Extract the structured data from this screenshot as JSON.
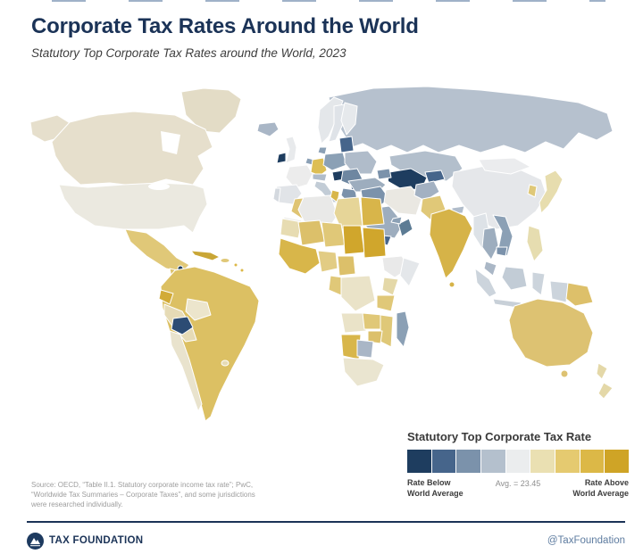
{
  "header": {
    "title": "Corporate Tax Rates Around the World",
    "subtitle": "Statutory Top Corporate Tax Rates around the World, 2023"
  },
  "legend": {
    "title": "Statutory Top Corporate Tax Rate",
    "left_label_line1": "Rate Below",
    "left_label_line2": "World Average",
    "center_label": "Avg. = 23.45",
    "right_label_line1": "Rate Above",
    "right_label_line2": "World Average",
    "swatches": [
      "#1e3d5f",
      "#46658b",
      "#7b92ab",
      "#b4c0cd",
      "#ebedee",
      "#eae0b2",
      "#e5ca70",
      "#dcb847",
      "#cfa426"
    ]
  },
  "source": {
    "line1": "Source:  OECD, “Table II.1. Statutory corporate income tax rate”; PwC,",
    "line2": "“Worldwide Tax Summaries – Corporate Taxes”, and some jurisdictions",
    "line3": "were researched individually."
  },
  "footer": {
    "brand": "TAX FOUNDATION",
    "handle": "@TaxFoundation",
    "accent_color": "#1b3357"
  },
  "chart_data": {
    "type": "choropleth_map",
    "title": "Corporate Tax Rates Around the World",
    "subtitle": "Statutory Top Corporate Tax Rates around the World, 2023",
    "legend_title": "Statutory Top Corporate Tax Rate",
    "world_average": 23.45,
    "scale": {
      "low_label": "Rate Below World Average",
      "high_label": "Rate Above World Average",
      "colors": [
        "#1e3d5f",
        "#46658b",
        "#7b92ab",
        "#b4c0cd",
        "#ebedee",
        "#eae0b2",
        "#e5ca70",
        "#dcb847",
        "#cfa426"
      ]
    },
    "notable_low_rate_regions": [
      "Ireland",
      "Hungary",
      "Bulgaria",
      "Paraguay",
      "Belize",
      "Turkmenistan",
      "Uzbekistan"
    ],
    "notable_high_rate_regions": [
      "Mexico",
      "Colombia",
      "Brazil",
      "Argentina",
      "India",
      "Australia",
      "Germany",
      "Morocco",
      "Egypt",
      "Sudan",
      "Chad",
      "Nigeria",
      "Japan",
      "Papua New Guinea",
      "Cuba"
    ]
  },
  "map": {
    "fills": {
      "greenland": "#e3dcc6",
      "alaska": "#e6dfcc",
      "canada": "#e6dfcc",
      "usa": "#ebe9e0",
      "mexico": "#e0c878",
      "belize": "#1e3d5f",
      "central_america": "#ddc26a",
      "cuba": "#c9a636",
      "hispaniola": "#e0c878",
      "caribbean": "#dcb847",
      "south_america": "#dcc063",
      "ecuador": "#d2ab38",
      "peru": "#e6dbb6",
      "bolivia": "#ece5cc",
      "paraguay": "#2c4c74",
      "chile": "#e9e3cd",
      "uruguay": "#e6dbb6",
      "iceland": "#a9b6c6",
      "uk": "#e8eaec",
      "ireland": "#1e3d5f",
      "norway": "#e4e7ea",
      "sweden": "#dfe3e8",
      "finland": "#e6e9ec",
      "denmark": "#8ba0b5",
      "france": "#ececec",
      "iberia": "#e1e4e8",
      "portugal": "#d4d9df",
      "germany": "#ddbe54",
      "benelux": "#8ba0b5",
      "alpine": "#b0bcca",
      "italy": "#c2ccd6",
      "poland_czech": "#8ba0b5",
      "baltics": "#46658b",
      "belarus_ukraine": "#b0bcca",
      "hungary": "#1e3d5f",
      "romania_serbia": "#6e87a1",
      "bulgaria": "#33537a",
      "greece": "#7b92ab",
      "russia": "#b6c1ce",
      "kazakhstan": "#b3bfcc",
      "turkmenistan_uzbekistan": "#1e3d5f",
      "kyrgyz_tajik": "#46658b",
      "turkey": "#9dadbe",
      "caucasus": "#7b92ab",
      "syria_iraq": "#7b92ab",
      "israel_jordan": "#c8d0d8",
      "saudi_arabia": "#9dadbe",
      "yemen": "#46658b",
      "oman": "#5c7b94",
      "uae": "#8ba0b5",
      "iran": "#eae8e2",
      "afghanistan": "#a3b1c2",
      "pakistan": "#e0c878",
      "morocco": "#dfc473",
      "western_sahara": "#ededea",
      "algeria": "#e9e9e8",
      "tunisia": "#d8b64a",
      "libya": "#e6d598",
      "egypt": "#d8b54a",
      "mauritania": "#e7dcb2",
      "mali": "#dcc06a",
      "niger": "#e0c878",
      "chad": "#d0a62c",
      "sudan": "#d0a62c",
      "west_africa": "#d8b64a",
      "nigeria": "#e2cc84",
      "cameroon": "#dcc06a",
      "ethiopia": "#e9e9e9",
      "somalia": "#e4e7ea",
      "kenya": "#e4d8a8",
      "tanzania": "#e0c878",
      "drc": "#eae3c8",
      "congo_gabon": "#e0c878",
      "angola": "#eae3c8",
      "zambia": "#e0c878",
      "mozambique": "#dfc878",
      "zimbabwe": "#dcc06a",
      "namibia": "#d8b64a",
      "botswana": "#a9b6c6",
      "south_africa": "#eae5d0",
      "madagascar": "#8ba0b5",
      "china": "#e5e7ea",
      "mongolia": "#ebecee",
      "india": "#d6b348",
      "sri_lanka": "#d6b348",
      "nepal": "#b0bcca",
      "myanmar": "#dde2e7",
      "thailand": "#9dadbe",
      "vietnam_laos": "#8ba0b5",
      "cambodia": "#7b92ab",
      "malaysia": "#aab7c6",
      "sumatra": "#ccd4dc",
      "java": "#c8d0d8",
      "borneo": "#c2ccd6",
      "sulawesi": "#ccd4dc",
      "west_new_guinea": "#ccd4dc",
      "papua_new_guinea": "#ddc06a",
      "philippines": "#e6ddb0",
      "south_korea": "#dfc878",
      "japan": "#e7ddae",
      "australia": "#ddc272",
      "tasmania": "#ddc272",
      "new_zealand": "#e4d8a8"
    }
  }
}
